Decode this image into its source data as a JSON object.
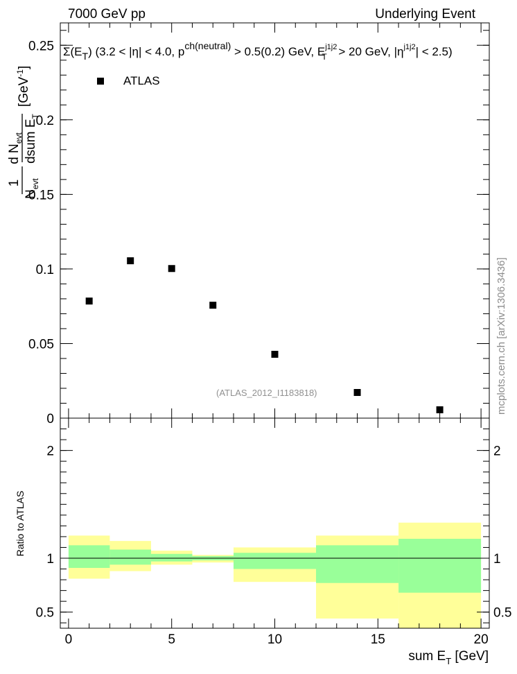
{
  "header": {
    "left": "7000 GeV pp",
    "right": "Underlying Event"
  },
  "watermark": "mcplots.cern.ch [arXiv:1306.3436]",
  "reference": "(ATLAS_2012_I1183818)",
  "colors": {
    "data": "#000000",
    "band_outer": "#ffff99",
    "band_inner": "#99ff99",
    "reference_line": "#000000"
  },
  "chart_data": [
    {
      "type": "scatter",
      "title_parts": {
        "sigma": "Σ(E",
        "sub_T": "T",
        "body1": ") (3.2 < |η| < 4.0, p",
        "sup_ch": "ch(neutral)",
        "body2": " > 0.5(0.2) GeV, E",
        "sup_j1": "j1j2",
        "sub_T2": "T",
        "body3": " > 20 GeV, |η",
        "sup_j2": "j1j2",
        "body4": "| < 2.5)"
      },
      "ylabel_parts": {
        "num": "1",
        "den": "N",
        "den_sub": "evt",
        "dnum": "d N",
        "dnum_sub": "evt",
        "dden": "dsum E",
        "dden_sub": "T",
        "unit": "[GeV",
        "unit_sup": "-1",
        "unit_close": "]"
      },
      "ylim": [
        0,
        0.265
      ],
      "xlim": [
        -0.4,
        20.4
      ],
      "yticks": [
        {
          "v": 0,
          "label": "0"
        },
        {
          "v": 0.05,
          "label": "0.05"
        },
        {
          "v": 0.1,
          "label": "0.1"
        },
        {
          "v": 0.15,
          "label": "0.15"
        },
        {
          "v": 0.2,
          "label": "0.2"
        },
        {
          "v": 0.25,
          "label": "0.25"
        }
      ],
      "legend": {
        "label": "ATLAS",
        "placement": "top-left"
      },
      "series": [
        {
          "name": "ATLAS",
          "x": [
            1,
            3,
            5,
            7,
            10,
            14,
            18
          ],
          "y": [
            0.0785,
            0.1055,
            0.1003,
            0.0757,
            0.0428,
            0.0172,
            0.0056
          ]
        }
      ]
    },
    {
      "type": "area",
      "ylabel": "Ratio to ATLAS",
      "xlabel_parts": {
        "main": "sum E",
        "sub": "T",
        "unit": " [GeV]"
      },
      "ylim": [
        0.35,
        2.3
      ],
      "xlim": [
        -0.4,
        20.4
      ],
      "reference_value": 1,
      "xticks": [
        {
          "v": 0,
          "label": "0"
        },
        {
          "v": 5,
          "label": "5"
        },
        {
          "v": 10,
          "label": "10"
        },
        {
          "v": 15,
          "label": "15"
        },
        {
          "v": 20,
          "label": "20"
        }
      ],
      "yticks": [
        {
          "v": 0.5,
          "label": "0.5"
        },
        {
          "v": 1,
          "label": "1"
        },
        {
          "v": 2,
          "label": "2"
        }
      ],
      "bins": [
        {
          "x0": 0,
          "x1": 2,
          "outer": [
            0.81,
            1.21
          ],
          "inner": [
            0.91,
            1.12
          ]
        },
        {
          "x0": 2,
          "x1": 4,
          "outer": [
            0.88,
            1.16
          ],
          "inner": [
            0.94,
            1.08
          ]
        },
        {
          "x0": 4,
          "x1": 6,
          "outer": [
            0.94,
            1.07
          ],
          "inner": [
            0.97,
            1.04
          ]
        },
        {
          "x0": 6,
          "x1": 8,
          "outer": [
            0.96,
            1.03
          ],
          "inner": [
            0.98,
            1.02
          ]
        },
        {
          "x0": 8,
          "x1": 12,
          "outer": [
            0.78,
            1.1
          ],
          "inner": [
            0.9,
            1.05
          ]
        },
        {
          "x0": 12,
          "x1": 16,
          "outer": [
            0.44,
            1.21
          ],
          "inner": [
            0.77,
            1.12
          ]
        },
        {
          "x0": 16,
          "x1": 20,
          "outer": [
            0.35,
            1.33
          ],
          "inner": [
            0.68,
            1.18
          ]
        }
      ]
    }
  ]
}
